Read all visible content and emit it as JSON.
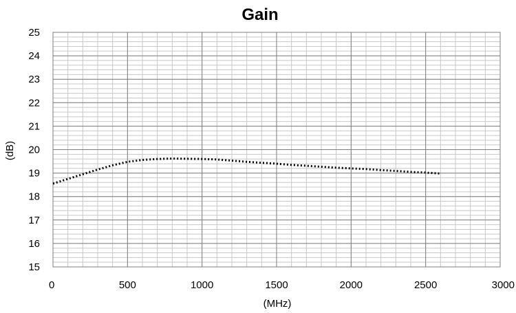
{
  "chart_data": {
    "type": "line",
    "title": "Gain",
    "xlabel": "(MHz)",
    "ylabel": "(dB)",
    "xlim": [
      0,
      3000
    ],
    "ylim": [
      15,
      25
    ],
    "xticks": [
      0,
      500,
      1000,
      1500,
      2000,
      2500,
      3000
    ],
    "yticks": [
      15,
      16,
      17,
      18,
      19,
      20,
      21,
      22,
      23,
      24,
      25
    ],
    "grid": true,
    "legend": "none",
    "series": [
      {
        "color": "#000000",
        "style": "dotted",
        "points": [
          {
            "x": 0,
            "y": 18.55
          },
          {
            "x": 100,
            "y": 18.75
          },
          {
            "x": 200,
            "y": 18.95
          },
          {
            "x": 300,
            "y": 19.15
          },
          {
            "x": 400,
            "y": 19.33
          },
          {
            "x": 500,
            "y": 19.48
          },
          {
            "x": 600,
            "y": 19.56
          },
          {
            "x": 700,
            "y": 19.6
          },
          {
            "x": 800,
            "y": 19.62
          },
          {
            "x": 900,
            "y": 19.61
          },
          {
            "x": 1000,
            "y": 19.6
          },
          {
            "x": 1100,
            "y": 19.58
          },
          {
            "x": 1200,
            "y": 19.53
          },
          {
            "x": 1300,
            "y": 19.48
          },
          {
            "x": 1400,
            "y": 19.44
          },
          {
            "x": 1500,
            "y": 19.4
          },
          {
            "x": 1600,
            "y": 19.35
          },
          {
            "x": 1700,
            "y": 19.31
          },
          {
            "x": 1800,
            "y": 19.27
          },
          {
            "x": 1900,
            "y": 19.23
          },
          {
            "x": 2000,
            "y": 19.2
          },
          {
            "x": 2100,
            "y": 19.17
          },
          {
            "x": 2200,
            "y": 19.13
          },
          {
            "x": 2300,
            "y": 19.09
          },
          {
            "x": 2400,
            "y": 19.05
          },
          {
            "x": 2500,
            "y": 19.02
          },
          {
            "x": 2600,
            "y": 18.98
          }
        ]
      }
    ]
  }
}
